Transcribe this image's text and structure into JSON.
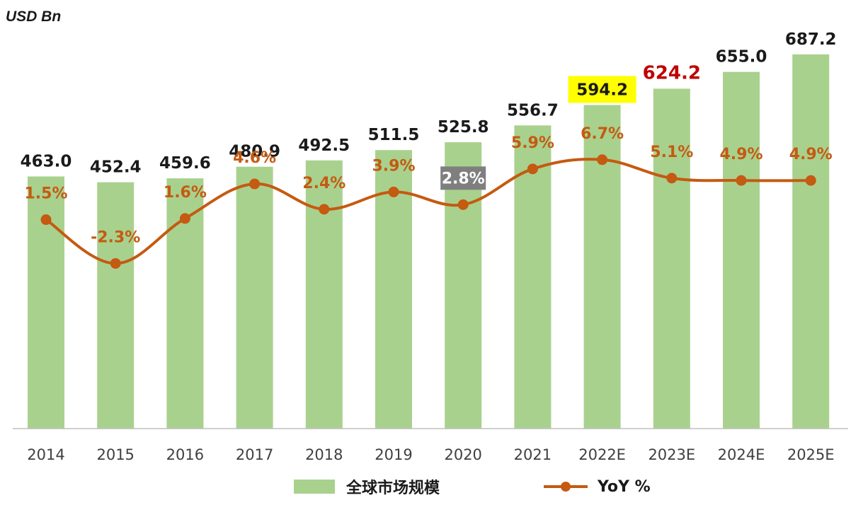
{
  "chart_data": {
    "type": "bar",
    "unit_label": "USD Bn",
    "categories": [
      "2014",
      "2015",
      "2016",
      "2017",
      "2018",
      "2019",
      "2020",
      "2021",
      "2022E",
      "2023E",
      "2024E",
      "2025E"
    ],
    "series": [
      {
        "name": "全球市场规模",
        "type": "bar",
        "values": [
          463.0,
          452.4,
          459.6,
          480.9,
          492.5,
          511.5,
          525.8,
          556.7,
          594.2,
          624.2,
          655.0,
          687.2
        ],
        "labels": [
          "463.0",
          "452.4",
          "459.6",
          "480.9",
          "492.5",
          "511.5",
          "525.8",
          "556.7",
          "594.2",
          "624.2",
          "655.0",
          "687.2"
        ],
        "color": "#a9d18e"
      },
      {
        "name": "YoY %",
        "type": "line",
        "values": [
          1.5,
          -2.3,
          1.6,
          4.6,
          2.4,
          3.9,
          2.8,
          5.9,
          6.7,
          5.1,
          4.9,
          4.9
        ],
        "labels": [
          "1.5%",
          "-2.3%",
          "1.6%",
          "4.6%",
          "2.4%",
          "3.9%",
          "2.8%",
          "5.9%",
          "6.7%",
          "5.1%",
          "4.9%",
          "4.9%"
        ],
        "color": "#c55a11"
      }
    ],
    "highlights": {
      "2020_yoy_label_bg": "#7f7f7f",
      "2022E_bar_label_bg": "#ffff00",
      "2023E_bar_label_color": "#c00000"
    },
    "y_axis_visible": false,
    "grid": false,
    "legend_position": "bottom"
  }
}
